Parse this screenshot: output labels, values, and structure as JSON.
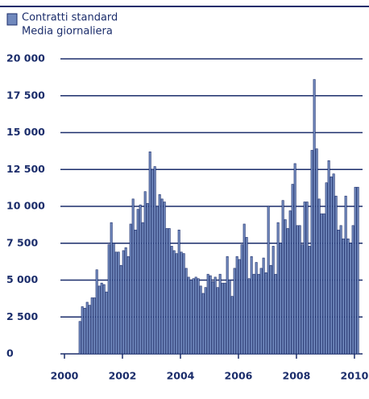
{
  "chart_data": {
    "type": "bar",
    "series": [
      {
        "name": "Contratti standard",
        "color": "#7189bd",
        "values": [
          2200,
          3200,
          3100,
          3500,
          3300,
          3800,
          3800,
          5700,
          4600,
          4800,
          4700,
          4200,
          7400,
          8900,
          7500,
          6900,
          6900,
          6000,
          7000,
          7200,
          6600,
          8800,
          10500,
          8400,
          9800,
          10100,
          8900,
          11000,
          10200,
          13700,
          12500,
          12700,
          10000,
          10800,
          10500,
          10300,
          8500,
          8500,
          7300,
          7000,
          6800,
          8400,
          6900,
          6800,
          5800,
          5200,
          5000,
          5100,
          5200,
          5100,
          4600,
          4100,
          4500,
          5400,
          5300,
          4900,
          5200,
          4500,
          5400,
          4800,
          4800,
          6600,
          5000,
          3900,
          5800,
          6600,
          6400,
          7400,
          8800,
          7900,
          5100,
          6600,
          5400,
          6200,
          5400,
          5800,
          6500,
          5500,
          10000,
          6000,
          7300,
          5400,
          8900,
          7500,
          10400,
          9100,
          8500,
          9700,
          11500,
          12900,
          8700,
          8700,
          7400,
          10300,
          10300,
          7300,
          13800,
          18600,
          13900,
          10500,
          9500,
          9500,
          11600,
          13100,
          12000,
          12200,
          10700,
          8400,
          8700,
          7800,
          10700,
          7800,
          7500,
          8700,
          11300,
          11300
        ]
      }
    ],
    "subtitle": "Media giornaliera",
    "x": [
      2000.5,
      2000.583,
      2000.667,
      2000.75,
      2000.833,
      2000.917,
      2001,
      2001.083,
      2001.167,
      2001.25,
      2001.333,
      2001.417,
      2001.5,
      2001.583,
      2001.667,
      2001.75,
      2001.833,
      2001.917,
      2002,
      2002.083,
      2002.167,
      2002.25,
      2002.333,
      2002.417,
      2002.5,
      2002.583,
      2002.667,
      2002.75,
      2002.833,
      2002.917,
      2003,
      2003.083,
      2003.167,
      2003.25,
      2003.333,
      2003.417,
      2003.5,
      2003.583,
      2003.667,
      2003.75,
      2003.833,
      2003.917,
      2004,
      2004.083,
      2004.167,
      2004.25,
      2004.333,
      2004.417,
      2004.5,
      2004.583,
      2004.667,
      2004.75,
      2004.833,
      2004.917,
      2005,
      2005.083,
      2005.167,
      2005.25,
      2005.333,
      2005.417,
      2005.5,
      2005.583,
      2005.667,
      2005.75,
      2005.833,
      2005.917,
      2006,
      2006.083,
      2006.167,
      2006.25,
      2006.333,
      2006.417,
      2006.5,
      2006.583,
      2006.667,
      2006.75,
      2006.833,
      2006.917,
      2007,
      2007.083,
      2007.167,
      2007.25,
      2007.333,
      2007.417,
      2007.5,
      2007.583,
      2007.667,
      2007.75,
      2007.833,
      2007.917,
      2008,
      2008.083,
      2008.167,
      2008.25,
      2008.333,
      2008.417,
      2008.5,
      2008.583,
      2008.667,
      2008.75,
      2008.833,
      2008.917,
      2009,
      2009.083,
      2009.167,
      2009.25,
      2009.333,
      2009.417,
      2009.5,
      2009.583,
      2009.667,
      2009.75,
      2009.833,
      2009.917,
      2010,
      2010.083
    ],
    "xlim": [
      2000,
      2010.28
    ],
    "xticks": [
      2000,
      2002,
      2004,
      2006,
      2008,
      2010
    ],
    "ylim": [
      0,
      20000
    ],
    "yticks": [
      0,
      {
        "value": 2500,
        "label": "2 500"
      },
      {
        "value": 5000,
        "label": "5 000"
      },
      {
        "value": 7500,
        "label": "7 500"
      },
      {
        "value": 10000,
        "label": "10 000"
      },
      {
        "value": 12500,
        "label": "12 500"
      },
      {
        "value": 15000,
        "label": "15 000"
      },
      {
        "value": 17500,
        "label": "17 500"
      },
      {
        "value": 20000,
        "label": "20 000"
      }
    ],
    "grid": true
  }
}
